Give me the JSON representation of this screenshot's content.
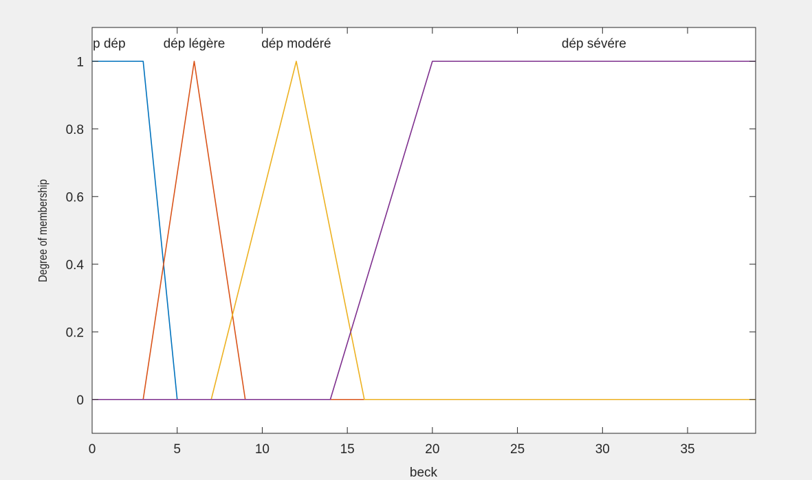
{
  "chart_data": {
    "type": "line",
    "title": "",
    "xlabel": "beck",
    "ylabel": "Degree of membership",
    "xlim": [
      0,
      39
    ],
    "ylim": [
      -0.1,
      1.1
    ],
    "xticks": [
      0,
      5,
      10,
      15,
      20,
      25,
      30,
      35
    ],
    "yticks": [
      0,
      0.2,
      0.4,
      0.6,
      0.8,
      1
    ],
    "ytick_labels": [
      "0",
      "0.2",
      "0.4",
      "0.6",
      "0.8",
      "1"
    ],
    "grid": false,
    "series": [
      {
        "name": "p dép",
        "color": "#0072BD",
        "x": [
          0,
          3,
          5,
          39
        ],
        "y": [
          1,
          1,
          0,
          0
        ]
      },
      {
        "name": "dép légère",
        "color": "#D95319",
        "x": [
          0,
          3,
          6,
          9,
          39
        ],
        "y": [
          0,
          0,
          1,
          0,
          0
        ]
      },
      {
        "name": "dép modéré",
        "color": "#EDB120",
        "x": [
          0,
          7,
          12,
          16,
          39
        ],
        "y": [
          0,
          0,
          1,
          0,
          0
        ]
      },
      {
        "name": "dép sévére",
        "color": "#7E2F8E",
        "x": [
          0,
          14,
          20,
          39
        ],
        "y": [
          0,
          0,
          1,
          1
        ]
      }
    ],
    "annotations": [
      {
        "text": "p dép",
        "x": 1.0,
        "y": 1.04
      },
      {
        "text": "dép légère",
        "x": 6.0,
        "y": 1.04
      },
      {
        "text": "dép modéré",
        "x": 12.0,
        "y": 1.04
      },
      {
        "text": "dép sévére",
        "x": 29.5,
        "y": 1.04
      }
    ]
  }
}
